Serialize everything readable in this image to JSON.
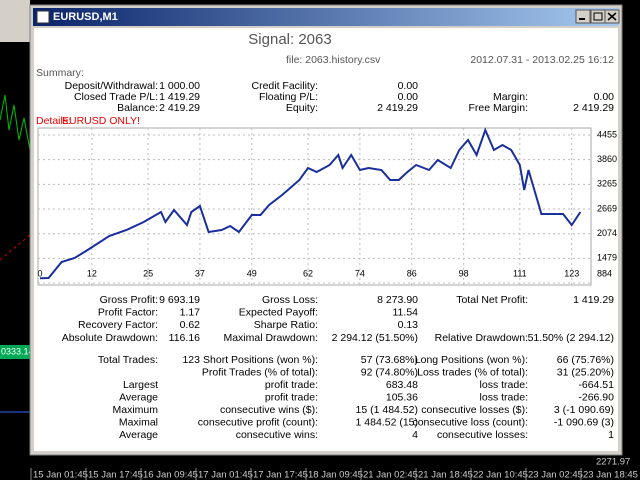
{
  "window": {
    "title": "EURUSD,M1"
  },
  "background": {
    "price_left": "0333.14",
    "price_right": "2271.97",
    "time_labels": [
      "15 Jan 01:45",
      "15 Jan 17:45",
      "16 Jan 09:45",
      "17 Jan 01:45",
      "17 Jan 17:45",
      "18 Jan 09:45",
      "21 Jan 02:45",
      "21 Jan 18:45",
      "22 Jan 10:45",
      "23 Jan 02:45",
      "23 Jan 18:45"
    ]
  },
  "report": {
    "signal": "Signal: 2063",
    "file": "file: 2063.history.csv",
    "period": "2012.07.31 - 2013.02.25 16:12",
    "summary": {
      "label": "Summary:",
      "rows": [
        [
          "Deposit/Withdrawal:",
          "1 000.00",
          "Credit Facility:",
          "0.00",
          null,
          null
        ],
        [
          "Closed Trade P/L:",
          "1 419.29",
          "Floating P/L:",
          "0.00",
          "Margin:",
          "0.00"
        ],
        [
          "Balance:",
          "2 419.29",
          "Equity:",
          "2 419.29",
          "Free Margin:",
          "2 419.29"
        ]
      ]
    },
    "details": {
      "label": "Details:",
      "note": "EURUSD ONLY!"
    },
    "chart": {
      "type": "line",
      "color": "#1a2f9e",
      "grid": true,
      "x": [
        0,
        2,
        5,
        8,
        11,
        16,
        20,
        24,
        28,
        29,
        31,
        34,
        35,
        37,
        39,
        42,
        44,
        46,
        49,
        51,
        53,
        56,
        60,
        62,
        64,
        67,
        69,
        70,
        72,
        74,
        76,
        79,
        81,
        83,
        85,
        87,
        90,
        92,
        95,
        97,
        99,
        101,
        103,
        105,
        107,
        109,
        111,
        112,
        113,
        116,
        121,
        123,
        125
      ],
      "values": [
        1000,
        1005,
        1390,
        1487,
        1680,
        2018,
        2163,
        2356,
        2597,
        2356,
        2645,
        2283,
        2597,
        2742,
        2115,
        2163,
        2260,
        2115,
        2525,
        2525,
        2766,
        3007,
        3369,
        3659,
        3562,
        3731,
        3972,
        3659,
        3972,
        3611,
        3659,
        3611,
        3369,
        3369,
        3562,
        3731,
        3611,
        3852,
        3659,
        4093,
        4334,
        3972,
        4576,
        4093,
        4214,
        4093,
        3731,
        3128,
        3611,
        2549,
        2549,
        2283,
        2597
      ],
      "xlim": [
        0,
        127
      ],
      "xticks": [
        0,
        12,
        25,
        37,
        49,
        62,
        74,
        86,
        98,
        111,
        123
      ],
      "ylim": [
        884,
        4697
      ],
      "yticks": [
        4455,
        3860,
        3265,
        2669,
        2074,
        1479,
        884
      ]
    },
    "results": {
      "rows": [
        [
          "Gross Profit:",
          "9 693.19",
          "Gross Loss:",
          "8 273.90",
          "Total Net Profit:",
          "1 419.29"
        ],
        [
          "Profit Factor:",
          "1.17",
          "Expected Payoff:",
          "11.54",
          null,
          null
        ],
        [
          "Recovery Factor:",
          "0.62",
          "Sharpe Ratio:",
          "0.13",
          null,
          null
        ],
        [
          "Absolute Drawdown:",
          "116.16",
          "Maximal Drawdown:",
          "2 294.12 (51.50%)",
          "Relative Drawdown:",
          "51.50% (2 294.12)"
        ]
      ]
    },
    "trades": {
      "rows": [
        [
          "Total Trades:",
          "123",
          "Short Positions (won %):",
          "57 (73.68%)",
          "Long Positions (won %):",
          "66 (75.76%)"
        ],
        [
          null,
          null,
          "Profit Trades (% of total):",
          "92 (74.80%)",
          "Loss trades (% of total):",
          "31 (25.20%)"
        ],
        [
          "Largest",
          null,
          "profit trade:",
          "683.48",
          "loss trade:",
          "-664.51"
        ],
        [
          "Average",
          null,
          "profit trade:",
          "105.36",
          "loss trade:",
          "-266.90"
        ],
        [
          "Maximum",
          null,
          "consecutive wins ($):",
          "15 (1 484.52)",
          "consecutive losses ($):",
          "3 (-1 090.69)"
        ],
        [
          "Maximal",
          null,
          "consecutive profit (count):",
          "1 484.52 (15)",
          "consecutive loss (count):",
          "-1 090.69 (3)"
        ],
        [
          "Average",
          null,
          "consecutive wins:",
          "4",
          "consecutive losses:",
          "1"
        ]
      ]
    }
  }
}
